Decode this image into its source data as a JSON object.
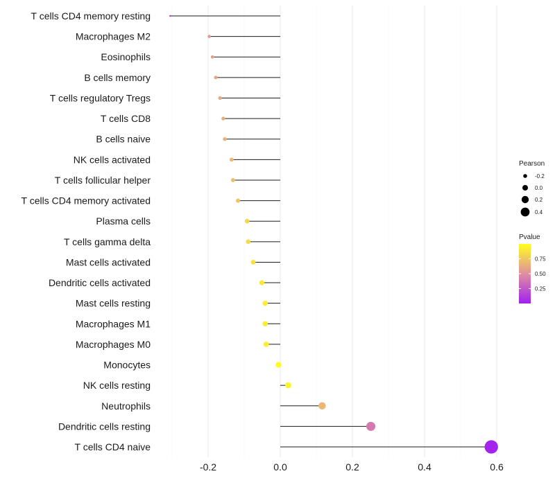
{
  "chart_data": {
    "type": "lollipop",
    "title": "",
    "xlabel": "",
    "ylabel": "",
    "xlim": [
      -0.33,
      0.6
    ],
    "x_ticks": [
      -0.2,
      0.0,
      0.2,
      0.4,
      0.6
    ],
    "x_tick_labels": [
      "-0.2",
      "0.0",
      "0.2",
      "0.4",
      "0.6"
    ],
    "grid": true,
    "categories": [
      "T cells CD4 memory resting",
      "Macrophages M2",
      "Eosinophils",
      "B cells memory",
      "T cells regulatory  Tregs ",
      "T cells CD8",
      "B cells naive",
      "NK cells activated",
      "T cells follicular helper",
      "T cells CD4 memory activated",
      "Plasma cells",
      "T cells gamma delta",
      "Mast cells activated",
      "Dendritic cells activated",
      "Mast cells resting",
      "Macrophages M1",
      "Macrophages M0",
      "Monocytes",
      "NK cells resting",
      "Neutrophils",
      "Dendritic cells resting",
      "T cells CD4 naive"
    ],
    "pearson": [
      -0.305,
      -0.197,
      -0.188,
      -0.179,
      -0.167,
      -0.158,
      -0.154,
      -0.135,
      -0.131,
      -0.117,
      -0.092,
      -0.089,
      -0.075,
      -0.051,
      -0.042,
      -0.042,
      -0.039,
      -0.005,
      0.022,
      0.116,
      0.251,
      0.585
    ],
    "pvalue": [
      0.12,
      0.55,
      0.57,
      0.59,
      0.61,
      0.64,
      0.65,
      0.69,
      0.71,
      0.74,
      0.82,
      0.83,
      0.86,
      0.9,
      0.92,
      0.92,
      0.93,
      0.99,
      0.95,
      0.68,
      0.4,
      0.02
    ],
    "legend_size": {
      "title": "Pearson",
      "labels": [
        "-0.2",
        "0.0",
        "0.2",
        "0.4"
      ],
      "values": [
        -0.2,
        0.0,
        0.2,
        0.4
      ]
    },
    "legend_color": {
      "title": "Pvalue",
      "labels": [
        "0.75",
        "0.50",
        "0.25"
      ],
      "values": [
        0.75,
        0.5,
        0.25
      ],
      "range": [
        0.0,
        1.0
      ],
      "low_color": "#a020f0",
      "mid_color": "#e08fa0",
      "high_color": "#ffff1f"
    },
    "legend_position": "right",
    "segment_color": "#1a1a1a"
  }
}
